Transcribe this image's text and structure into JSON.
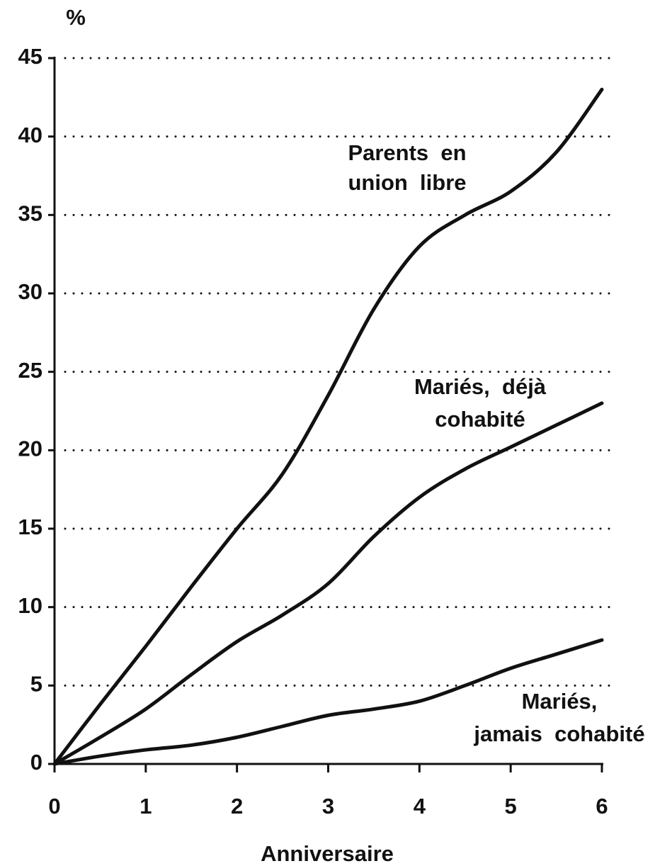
{
  "chart_data": {
    "type": "line",
    "ylabel": "%",
    "xlabel": "Anniversaire",
    "x": [
      0,
      0.5,
      1,
      1.5,
      2,
      2.5,
      3,
      3.5,
      4,
      4.5,
      5,
      5.5,
      6
    ],
    "series": [
      {
        "label": [
          "Parents  en",
          "union  libre"
        ],
        "color": "#111111",
        "values": [
          0,
          3.8,
          7.5,
          11.3,
          15,
          18.5,
          23.5,
          29,
          33,
          35,
          36.5,
          39,
          43
        ]
      },
      {
        "label": [
          "Mariés,  déjà",
          "cohabité"
        ],
        "color": "#111111",
        "values": [
          0,
          1.7,
          3.5,
          5.7,
          7.8,
          9.5,
          11.5,
          14.5,
          17,
          18.8,
          20.2,
          21.6,
          23
        ]
      },
      {
        "label": [
          "Mariés,",
          "jamais  cohabité"
        ],
        "color": "#111111",
        "values": [
          0,
          0.5,
          0.9,
          1.2,
          1.7,
          2.4,
          3.1,
          3.5,
          4,
          5,
          6.1,
          7,
          7.9
        ]
      }
    ],
    "xlim": [
      0,
      6
    ],
    "xticks": [
      0,
      1,
      2,
      3,
      4,
      5,
      6
    ],
    "ylim": [
      0,
      45
    ],
    "yticks": [
      0,
      5,
      10,
      15,
      20,
      25,
      30,
      35,
      40,
      45
    ],
    "grid": true
  }
}
